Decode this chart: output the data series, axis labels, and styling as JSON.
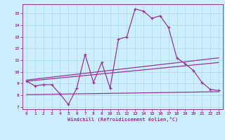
{
  "xlabel": "Windchill (Refroidissement éolien,°C)",
  "bg_color": "#cceeff",
  "grid_color": "#aadddd",
  "line_color": "#993399",
  "xlim": [
    -0.5,
    23.5
  ],
  "ylim": [
    6.8,
    15.8
  ],
  "yticks": [
    7,
    8,
    9,
    10,
    11,
    12,
    13,
    14,
    15
  ],
  "xticks": [
    0,
    1,
    2,
    3,
    4,
    5,
    6,
    7,
    8,
    9,
    10,
    11,
    12,
    13,
    14,
    15,
    16,
    17,
    18,
    19,
    20,
    21,
    22,
    23
  ],
  "series1_x": [
    0,
    1,
    2,
    3,
    4,
    5,
    6,
    7,
    8,
    9,
    10,
    11,
    12,
    13,
    14,
    15,
    16,
    17,
    18,
    19,
    20,
    21,
    22,
    23
  ],
  "series1_y": [
    9.2,
    8.8,
    8.9,
    8.9,
    8.1,
    7.2,
    8.6,
    11.5,
    9.1,
    10.8,
    8.6,
    12.8,
    13.0,
    15.4,
    15.2,
    14.6,
    14.8,
    13.8,
    11.2,
    10.7,
    10.1,
    9.1,
    8.5,
    8.4
  ],
  "series2_x": [
    0,
    23
  ],
  "series2_y": [
    8.05,
    8.3
  ],
  "series3_x": [
    0,
    23
  ],
  "series3_y": [
    9.2,
    10.8
  ],
  "series4_x": [
    0,
    23
  ],
  "series4_y": [
    9.3,
    11.2
  ]
}
